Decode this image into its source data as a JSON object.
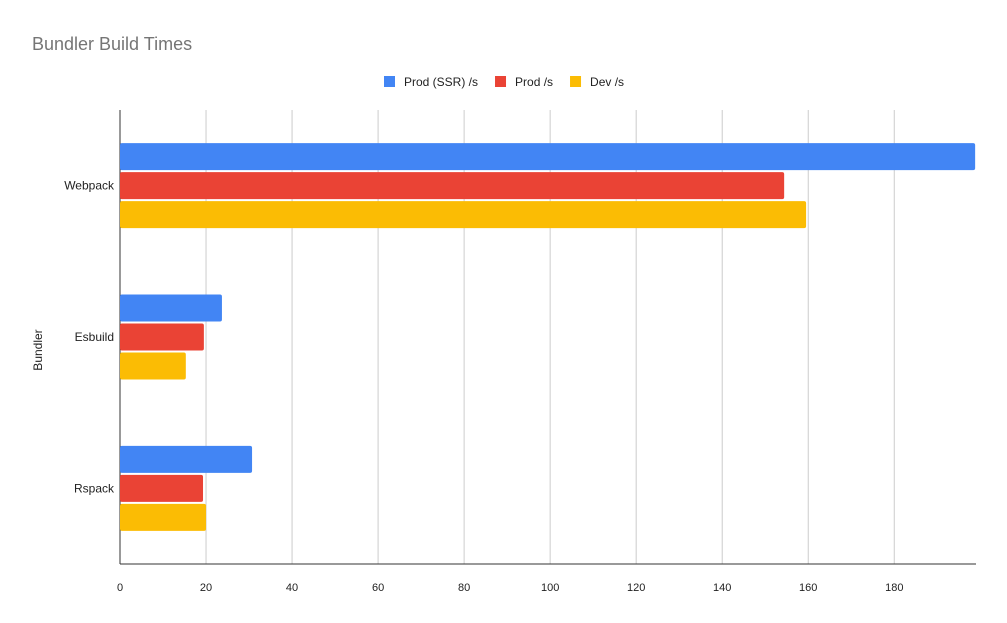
{
  "chart_data": {
    "type": "bar",
    "orientation": "horizontal",
    "title": "Bundler Build Times",
    "xlabel": "",
    "ylabel": "Bundler",
    "categories": [
      "Webpack",
      "Esbuild",
      "Rspack"
    ],
    "series": [
      {
        "name": "Prod (SSR) /s",
        "color": "#4285f4",
        "values": [
          198.8,
          23.7,
          30.7
        ]
      },
      {
        "name": "Prod /s",
        "color": "#ea4335",
        "values": [
          154.4,
          19.5,
          19.3
        ]
      },
      {
        "name": "Dev /s",
        "color": "#fbbc04",
        "values": [
          159.5,
          15.3,
          20.0
        ]
      }
    ],
    "xlim": [
      0,
      199
    ],
    "xticks": [
      0,
      20,
      40,
      60,
      80,
      100,
      120,
      140,
      160,
      180
    ],
    "grid": true,
    "legend_position": "top"
  }
}
